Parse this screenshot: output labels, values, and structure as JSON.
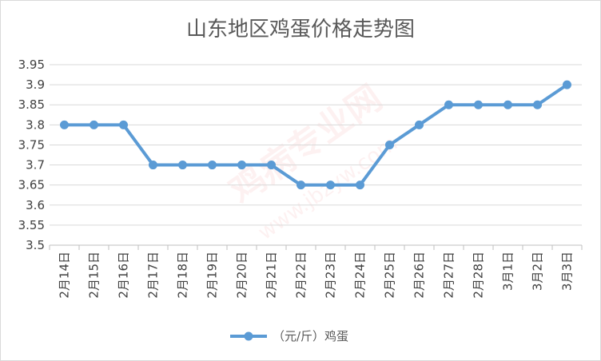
{
  "chart_data": {
    "type": "line",
    "title": "山东地区鸡蛋价格走势图",
    "xlabel": "",
    "ylabel": "",
    "categories": [
      "2月14日",
      "2月15日",
      "2月16日",
      "2月17日",
      "2月18日",
      "2月19日",
      "2月20日",
      "2月21日",
      "2月22日",
      "2月23日",
      "2月24日",
      "2月25日",
      "2月26日",
      "2月27日",
      "2月28日",
      "3月1日",
      "3月2日",
      "3月3日"
    ],
    "series": [
      {
        "name": "（元/斤）鸡蛋",
        "values": [
          3.8,
          3.8,
          3.8,
          3.7,
          3.7,
          3.7,
          3.7,
          3.7,
          3.65,
          3.65,
          3.65,
          3.75,
          3.8,
          3.85,
          3.85,
          3.85,
          3.85,
          3.9
        ],
        "color": "#5b9bd5"
      }
    ],
    "ylim": [
      3.5,
      3.95
    ],
    "yticks": [
      3.5,
      3.55,
      3.6,
      3.65,
      3.7,
      3.75,
      3.8,
      3.85,
      3.9,
      3.95
    ],
    "grid": true,
    "legend": "bottom"
  },
  "watermark": {
    "text": "鸡病专业网",
    "url": "www.jbzyw.com"
  },
  "colors": {
    "grid": "#d9d9d9",
    "axis": "#bfbfbf",
    "series": "#5b9bd5"
  }
}
